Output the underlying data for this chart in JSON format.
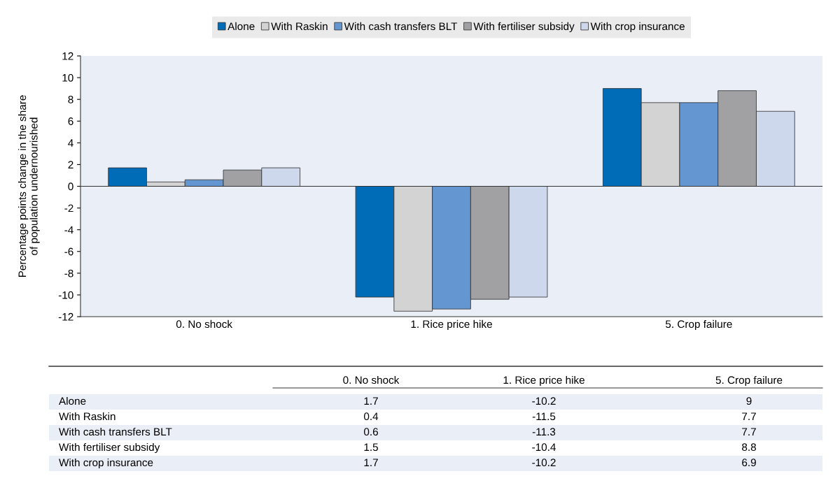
{
  "chart_data": [
    {
      "type": "bar",
      "ylabel": "Percentage points change in the share of population undernourished",
      "categories": [
        "0. No shock",
        "1. Rice price hike",
        "5. Crop failure"
      ],
      "series": [
        {
          "name": "Alone",
          "color": "#006bb6",
          "values": [
            1.7,
            -10.2,
            9
          ]
        },
        {
          "name": "With Raskin",
          "color": "#d3d3d3",
          "values": [
            0.4,
            -11.5,
            7.7
          ]
        },
        {
          "name": "With cash transfers BLT",
          "color": "#6497d1",
          "values": [
            0.6,
            -11.3,
            7.7
          ]
        },
        {
          "name": "With fertiliser subsidy",
          "color": "#a1a1a4",
          "values": [
            1.5,
            -10.4,
            8.8
          ]
        },
        {
          "name": "With crop insurance",
          "color": "#cdd8ec",
          "values": [
            1.7,
            -10.2,
            6.9
          ]
        }
      ],
      "ylim": [
        -12,
        12
      ],
      "yticks": [
        -12,
        -10,
        -8,
        -6,
        -4,
        -2,
        0,
        2,
        4,
        6,
        8,
        10,
        12
      ],
      "ref_lines": [
        {
          "axis": "y",
          "value": 0
        }
      ],
      "grid": false,
      "legend": "top"
    },
    {
      "type": "other",
      "data_labels": true,
      "categories": [
        "0. No shock",
        "1. Rice price hike",
        "5. Crop failure"
      ],
      "series": [
        {
          "name": "Alone",
          "values": [
            1.7,
            -10.2,
            9
          ]
        },
        {
          "name": "With Raskin",
          "values": [
            0.4,
            -11.5,
            7.7
          ]
        },
        {
          "name": "With cash transfers BLT",
          "values": [
            0.6,
            -11.3,
            7.7
          ]
        },
        {
          "name": "With fertiliser subsidy",
          "values": [
            1.5,
            -10.4,
            8.8
          ]
        },
        {
          "name": "With crop insurance",
          "values": [
            1.7,
            -10.2,
            6.9
          ]
        }
      ]
    }
  ]
}
